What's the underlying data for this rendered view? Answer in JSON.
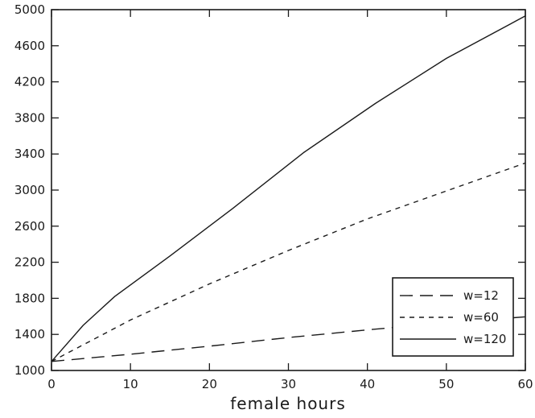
{
  "chart_data": {
    "type": "line",
    "title": "",
    "xlabel": "female hours",
    "ylabel": "",
    "xlim": [
      0,
      60
    ],
    "ylim": [
      1000,
      5000
    ],
    "xticks": [
      0,
      10,
      20,
      30,
      40,
      50,
      60
    ],
    "yticks": [
      1000,
      1400,
      1800,
      2200,
      2600,
      3000,
      3400,
      3800,
      4200,
      4600,
      5000
    ],
    "xtick_labels": [
      "0",
      "10",
      "20",
      "30",
      "40",
      "50",
      "60"
    ],
    "ytick_labels": [
      "1000",
      "1400",
      "1800",
      "2200",
      "2600",
      "3000",
      "3400",
      "3800",
      "4200",
      "4600",
      "5000"
    ],
    "grid": false,
    "legend_position": "bottom-right",
    "series": [
      {
        "name": "w=12",
        "style": "long-dash",
        "x": [
          0,
          10,
          20,
          30,
          40,
          50,
          60
        ],
        "y": [
          1100,
          1180,
          1270,
          1365,
          1450,
          1530,
          1595
        ]
      },
      {
        "name": "w=60",
        "style": "short-dash",
        "x": [
          0,
          10,
          20,
          30,
          40,
          50,
          60
        ],
        "y": [
          1100,
          1560,
          1960,
          2330,
          2680,
          2990,
          3300
        ]
      },
      {
        "name": "w=120",
        "style": "solid",
        "x": [
          0,
          4,
          8,
          15,
          23,
          32,
          41,
          50,
          60
        ],
        "y": [
          1100,
          1500,
          1820,
          2270,
          2800,
          3420,
          3960,
          4460,
          4930
        ]
      }
    ],
    "colors": {
      "line": "#1a1a1a",
      "background": "#ffffff"
    }
  }
}
